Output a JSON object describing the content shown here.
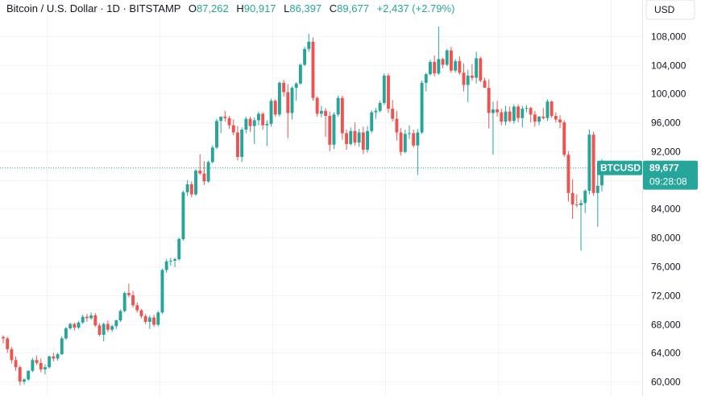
{
  "header": {
    "symbol": "Bitcoin / U.S. Dollar · 1D · BITSTAMP",
    "o_label": "O",
    "o_value": "87,262",
    "h_label": "H",
    "h_value": "90,917",
    "l_label": "L",
    "l_value": "86,397",
    "c_label": "C",
    "c_value": "89,677",
    "change": "+2,437 (+2.79%)"
  },
  "currency": "USD",
  "price_tag": {
    "symbol": "BTCUSD",
    "price": "89,677",
    "countdown": "09:28:08"
  },
  "colors": {
    "up": "#26a69a",
    "down": "#ef5350",
    "grid": "#f0f3fa",
    "axis_text": "#131722"
  },
  "chart_data": {
    "type": "candlestick",
    "title": "Bitcoin / U.S. Dollar · 1D · BITSTAMP",
    "ylim": [
      58000,
      113000
    ],
    "y_ticks": [
      60000,
      64000,
      68000,
      72000,
      76000,
      80000,
      84000,
      88000,
      92000,
      96000,
      100000,
      104000,
      108000
    ],
    "y_tick_labels": [
      "60,000",
      "64,000",
      "68,000",
      "72,000",
      "76,000",
      "80,000",
      "84,000",
      "88,000",
      "92,000",
      "96,000",
      "100,000",
      "104,000",
      "108,000"
    ],
    "grid": true,
    "last_price": 89677,
    "candles": [
      [
        66200,
        66400,
        65300,
        66000
      ],
      [
        66000,
        66200,
        64000,
        64500
      ],
      [
        64500,
        64800,
        62500,
        63000
      ],
      [
        63000,
        63500,
        61500,
        62000
      ],
      [
        62000,
        62200,
        59500,
        60000
      ],
      [
        60000,
        60500,
        59600,
        60300
      ],
      [
        60300,
        61600,
        60100,
        61500
      ],
      [
        61500,
        63300,
        61300,
        63000
      ],
      [
        63000,
        63600,
        62300,
        62600
      ],
      [
        62600,
        63200,
        61300,
        61700
      ],
      [
        61700,
        62400,
        61000,
        62000
      ],
      [
        62000,
        63600,
        61800,
        63500
      ],
      [
        63500,
        64000,
        62800,
        63200
      ],
      [
        63200,
        64000,
        62900,
        63800
      ],
      [
        63800,
        66300,
        63700,
        66000
      ],
      [
        66000,
        67600,
        65800,
        67400
      ],
      [
        67400,
        68200,
        67200,
        68000
      ],
      [
        68000,
        68200,
        67100,
        67500
      ],
      [
        67500,
        68400,
        67300,
        68200
      ],
      [
        68200,
        69300,
        68000,
        69000
      ],
      [
        69000,
        69400,
        68300,
        68800
      ],
      [
        68800,
        69600,
        68600,
        69200
      ],
      [
        69200,
        69500,
        67600,
        67800
      ],
      [
        67800,
        68100,
        66300,
        66500
      ],
      [
        66500,
        68200,
        65600,
        68000
      ],
      [
        68000,
        68500,
        66900,
        67200
      ],
      [
        67200,
        67900,
        66900,
        67700
      ],
      [
        67700,
        68600,
        67300,
        68500
      ],
      [
        68500,
        70000,
        68300,
        69800
      ],
      [
        69800,
        72500,
        69600,
        72300
      ],
      [
        72300,
        73600,
        71700,
        72000
      ],
      [
        72000,
        72600,
        70300,
        70600
      ],
      [
        70600,
        71000,
        69600,
        69900
      ],
      [
        69900,
        70100,
        68800,
        69100
      ],
      [
        69100,
        69400,
        68000,
        68300
      ],
      [
        68300,
        69200,
        67300,
        68900
      ],
      [
        68900,
        69300,
        67600,
        67900
      ],
      [
        67900,
        69800,
        67700,
        69600
      ],
      [
        69600,
        75700,
        69400,
        75500
      ],
      [
        75500,
        77000,
        75100,
        76700
      ],
      [
        76700,
        77200,
        76100,
        76800
      ],
      [
        76800,
        77200,
        75900,
        77000
      ],
      [
        77000,
        80000,
        76800,
        79800
      ],
      [
        79800,
        86500,
        79600,
        86300
      ],
      [
        86300,
        88000,
        85800,
        87400
      ],
      [
        87400,
        87800,
        85600,
        86000
      ],
      [
        86000,
        89500,
        85800,
        89300
      ],
      [
        89300,
        91600,
        88700,
        88900
      ],
      [
        88900,
        90600,
        87300,
        87800
      ],
      [
        87800,
        90700,
        87600,
        90500
      ],
      [
        90500,
        92800,
        90300,
        92500
      ],
      [
        92500,
        96500,
        92300,
        96200
      ],
      [
        96200,
        96800,
        94500,
        96800
      ],
      [
        96800,
        97600,
        96100,
        96600
      ],
      [
        96600,
        96900,
        95100,
        95600
      ],
      [
        95600,
        96400,
        94200,
        94600
      ],
      [
        94600,
        95500,
        90700,
        91200
      ],
      [
        91200,
        95300,
        90500,
        95000
      ],
      [
        95000,
        96800,
        94500,
        96500
      ],
      [
        96500,
        96800,
        94700,
        95500
      ],
      [
        95500,
        96700,
        93000,
        96300
      ],
      [
        96300,
        97500,
        95600,
        97200
      ],
      [
        97200,
        97400,
        95000,
        95600
      ],
      [
        95600,
        96300,
        92700,
        95800
      ],
      [
        95800,
        99300,
        95400,
        99000
      ],
      [
        99000,
        99200,
        96800,
        97100
      ],
      [
        97100,
        101700,
        96800,
        101500
      ],
      [
        101500,
        101900,
        99600,
        100200
      ],
      [
        100200,
        101300,
        93800,
        97300
      ],
      [
        97300,
        101000,
        96400,
        100800
      ],
      [
        100800,
        101600,
        99000,
        101400
      ],
      [
        101400,
        104200,
        101200,
        104000
      ],
      [
        104000,
        106500,
        103800,
        106200
      ],
      [
        106200,
        108300,
        105800,
        107200
      ],
      [
        107200,
        107800,
        99000,
        99400
      ],
      [
        99400,
        99600,
        96800,
        97200
      ],
      [
        97200,
        98300,
        96700,
        97600
      ],
      [
        97600,
        98000,
        94000,
        96900
      ],
      [
        96900,
        97500,
        92000,
        92900
      ],
      [
        92900,
        97400,
        92300,
        97100
      ],
      [
        97100,
        99700,
        96800,
        99400
      ],
      [
        99400,
        99700,
        93600,
        94500
      ],
      [
        94500,
        95000,
        92200,
        93000
      ],
      [
        93000,
        95300,
        92800,
        94800
      ],
      [
        94800,
        96000,
        92800,
        93200
      ],
      [
        93200,
        95100,
        92600,
        94600
      ],
      [
        94600,
        95400,
        91600,
        92200
      ],
      [
        92200,
        95500,
        91800,
        94800
      ],
      [
        94800,
        97700,
        94500,
        97400
      ],
      [
        97400,
        98000,
        96500,
        97600
      ],
      [
        97600,
        99000,
        97400,
        98700
      ],
      [
        98700,
        102800,
        98400,
        102500
      ],
      [
        102500,
        102800,
        97300,
        97900
      ],
      [
        97900,
        99100,
        96100,
        96500
      ],
      [
        96500,
        97600,
        93500,
        94600
      ],
      [
        94600,
        95200,
        91400,
        91900
      ],
      [
        91900,
        95000,
        91700,
        94400
      ],
      [
        94400,
        95600,
        93700,
        94500
      ],
      [
        94500,
        95000,
        92500,
        92800
      ],
      [
        92800,
        95100,
        88700,
        94600
      ],
      [
        94600,
        101800,
        94400,
        101500
      ],
      [
        101500,
        102900,
        100300,
        102700
      ],
      [
        102700,
        104700,
        102500,
        104400
      ],
      [
        104400,
        105300,
        102400,
        102800
      ],
      [
        102800,
        109300,
        102600,
        104800
      ],
      [
        104800,
        105000,
        103500,
        104000
      ],
      [
        104000,
        106200,
        103800,
        106000
      ],
      [
        106000,
        106500,
        102900,
        103200
      ],
      [
        103200,
        104800,
        102900,
        104500
      ],
      [
        104500,
        105200,
        102600,
        102900
      ],
      [
        102900,
        104200,
        100300,
        101200
      ],
      [
        101200,
        103300,
        98800,
        102500
      ],
      [
        102500,
        104100,
        101800,
        102200
      ],
      [
        102200,
        105800,
        101400,
        104900
      ],
      [
        104900,
        105100,
        101600,
        101800
      ],
      [
        101800,
        102200,
        100800,
        100800
      ],
      [
        100800,
        102000,
        95200,
        97300
      ],
      [
        97300,
        98900,
        91500,
        97800
      ],
      [
        97800,
        99000,
        96800,
        97400
      ],
      [
        97400,
        97900,
        95600,
        96100
      ],
      [
        96100,
        98300,
        95600,
        97500
      ],
      [
        97500,
        98200,
        96000,
        96200
      ],
      [
        96200,
        98500,
        95800,
        98200
      ],
      [
        98200,
        98500,
        96000,
        96600
      ],
      [
        96600,
        98300,
        95300,
        97900
      ],
      [
        97900,
        98400,
        97400,
        98000
      ],
      [
        98000,
        98200,
        96000,
        97100
      ],
      [
        97100,
        97600,
        95400,
        96100
      ],
      [
        96100,
        96900,
        95600,
        96800
      ],
      [
        96800,
        98000,
        96400,
        96600
      ],
      [
        96600,
        99200,
        96200,
        98900
      ],
      [
        98900,
        99000,
        96600,
        96900
      ],
      [
        96900,
        97400,
        96000,
        96400
      ],
      [
        96400,
        97000,
        95200,
        96000
      ],
      [
        96000,
        96300,
        91200,
        91500
      ],
      [
        91500,
        92000,
        85000,
        86200
      ],
      [
        86200,
        88100,
        82600,
        84600
      ],
      [
        84600,
        86000,
        84200,
        84500
      ],
      [
        84500,
        85300,
        78200,
        84800
      ],
      [
        84800,
        86700,
        83400,
        86500
      ],
      [
        86500,
        95000,
        86000,
        94300
      ],
      [
        94300,
        94700,
        85800,
        86200
      ],
      [
        86200,
        90100,
        81500,
        87200
      ],
      [
        87262,
        90917,
        86397,
        89677
      ]
    ]
  }
}
